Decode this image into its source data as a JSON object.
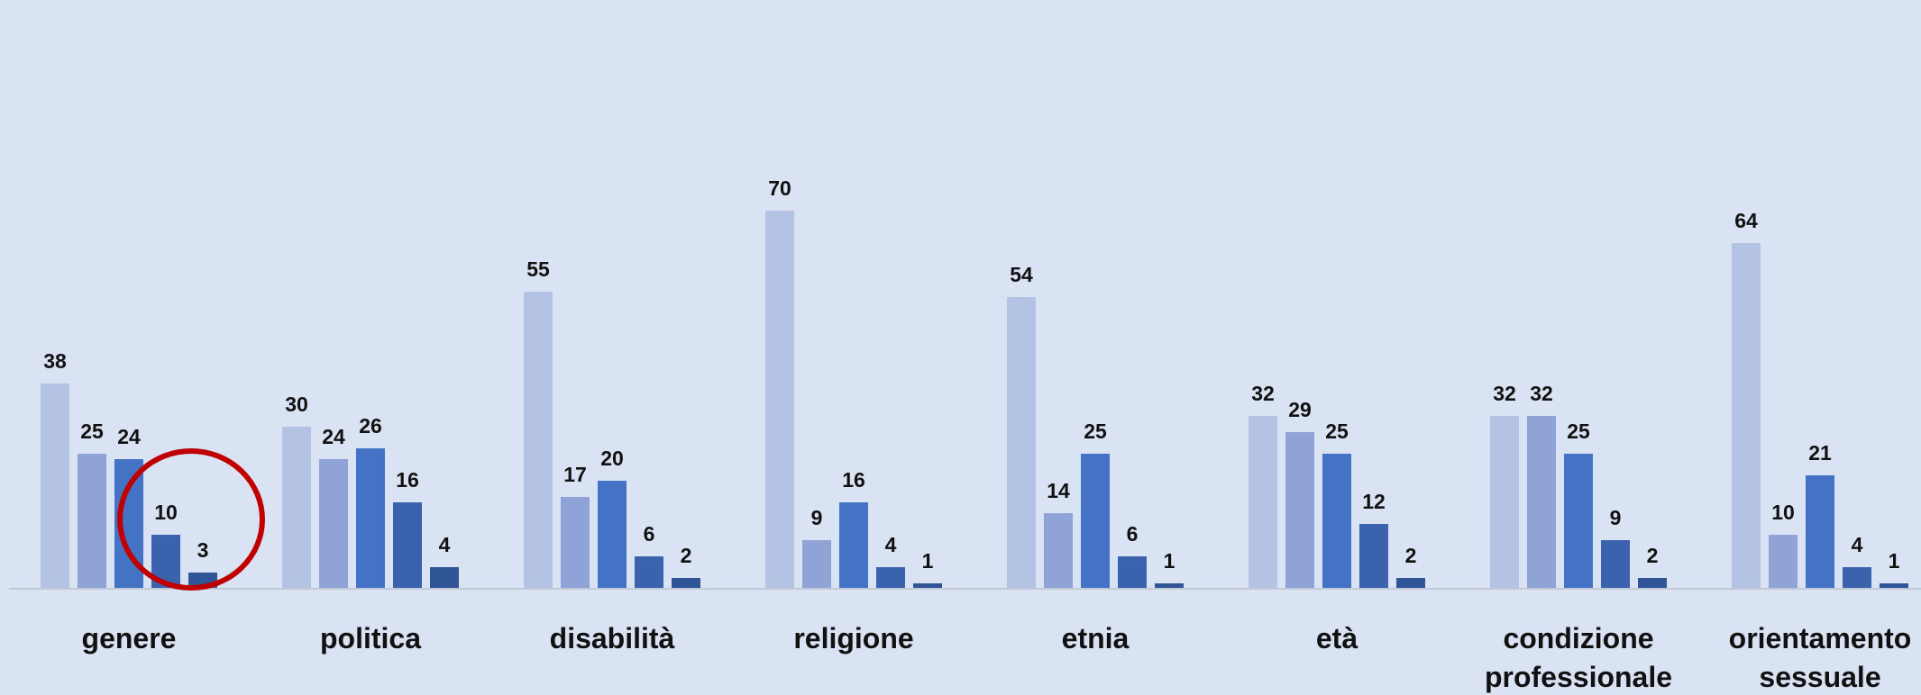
{
  "chart_data": {
    "type": "bar",
    "title": "",
    "xlabel": "",
    "ylabel": "",
    "ylim": [
      0,
      74
    ],
    "grid": false,
    "legend": "none",
    "categories": [
      [
        "genere"
      ],
      [
        "politica"
      ],
      [
        "disabilità"
      ],
      [
        "religione"
      ],
      [
        "etnia"
      ],
      [
        "età"
      ],
      [
        "condizione",
        "professionale"
      ],
      [
        "orientamento",
        "sessuale"
      ]
    ],
    "series": [
      {
        "values": [
          38,
          30,
          55,
          70,
          54,
          32,
          32,
          64
        ]
      },
      {
        "values": [
          25,
          24,
          17,
          9,
          14,
          29,
          32,
          10
        ]
      },
      {
        "values": [
          24,
          26,
          20,
          16,
          25,
          25,
          25,
          21
        ]
      },
      {
        "values": [
          10,
          16,
          6,
          4,
          6,
          12,
          9,
          4
        ]
      },
      {
        "values": [
          3,
          4,
          2,
          1,
          1,
          2,
          2,
          1
        ]
      }
    ],
    "series_colors": [
      "#b4c2e3",
      "#8fa3d6",
      "#4472c4",
      "#3a62ad",
      "#2f5597"
    ],
    "axis_color": "#c3c9d4",
    "annotation": {
      "shape": "circle",
      "color": "#c00000",
      "highlights_category": "genere",
      "highlights_series": [
        3,
        4
      ]
    }
  }
}
